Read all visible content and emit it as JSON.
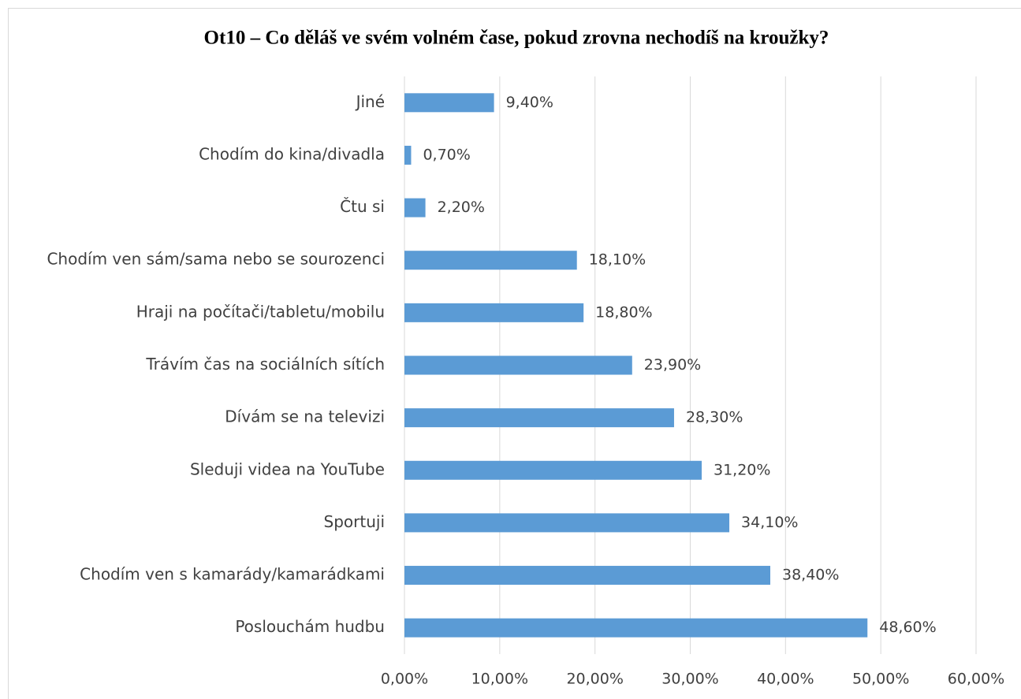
{
  "chart_data": {
    "type": "bar",
    "orientation": "horizontal",
    "title": "Ot10 – Co děláš ve svém volném čase, pokud zrovna nechodíš na kroužky?",
    "categories": [
      "Jiné",
      "Chodím do kina/divadla",
      "Čtu si",
      "Chodím ven sám/sama nebo se sourozenci",
      "Hraji na počítači/tabletu/mobilu",
      "Trávím čas na sociálních sítích",
      "Dívám se na televizi",
      "Sleduji videa na YouTube",
      "Sportuji",
      "Chodím ven s kamarády/kamarádkami",
      "Poslouchám hudbu"
    ],
    "values": [
      9.4,
      0.7,
      2.2,
      18.1,
      18.8,
      23.9,
      28.3,
      31.2,
      34.1,
      38.4,
      48.6
    ],
    "value_labels": [
      "9,40%",
      "0,70%",
      "2,20%",
      "18,10%",
      "18,80%",
      "23,90%",
      "28,30%",
      "31,20%",
      "34,10%",
      "38,40%",
      "48,60%"
    ],
    "color": "#5b9bd5",
    "xlim": [
      0,
      60
    ],
    "xticks": [
      {
        "value": 0,
        "label": "0,00%"
      },
      {
        "value": 10,
        "label": "10,00%"
      },
      {
        "value": 20,
        "label": "20,00%"
      },
      {
        "value": 30,
        "label": "30,00%"
      },
      {
        "value": 40,
        "label": "40,00%"
      },
      {
        "value": 50,
        "label": "50,00%"
      },
      {
        "value": 60,
        "label": "60,00%"
      }
    ],
    "grid": true
  }
}
